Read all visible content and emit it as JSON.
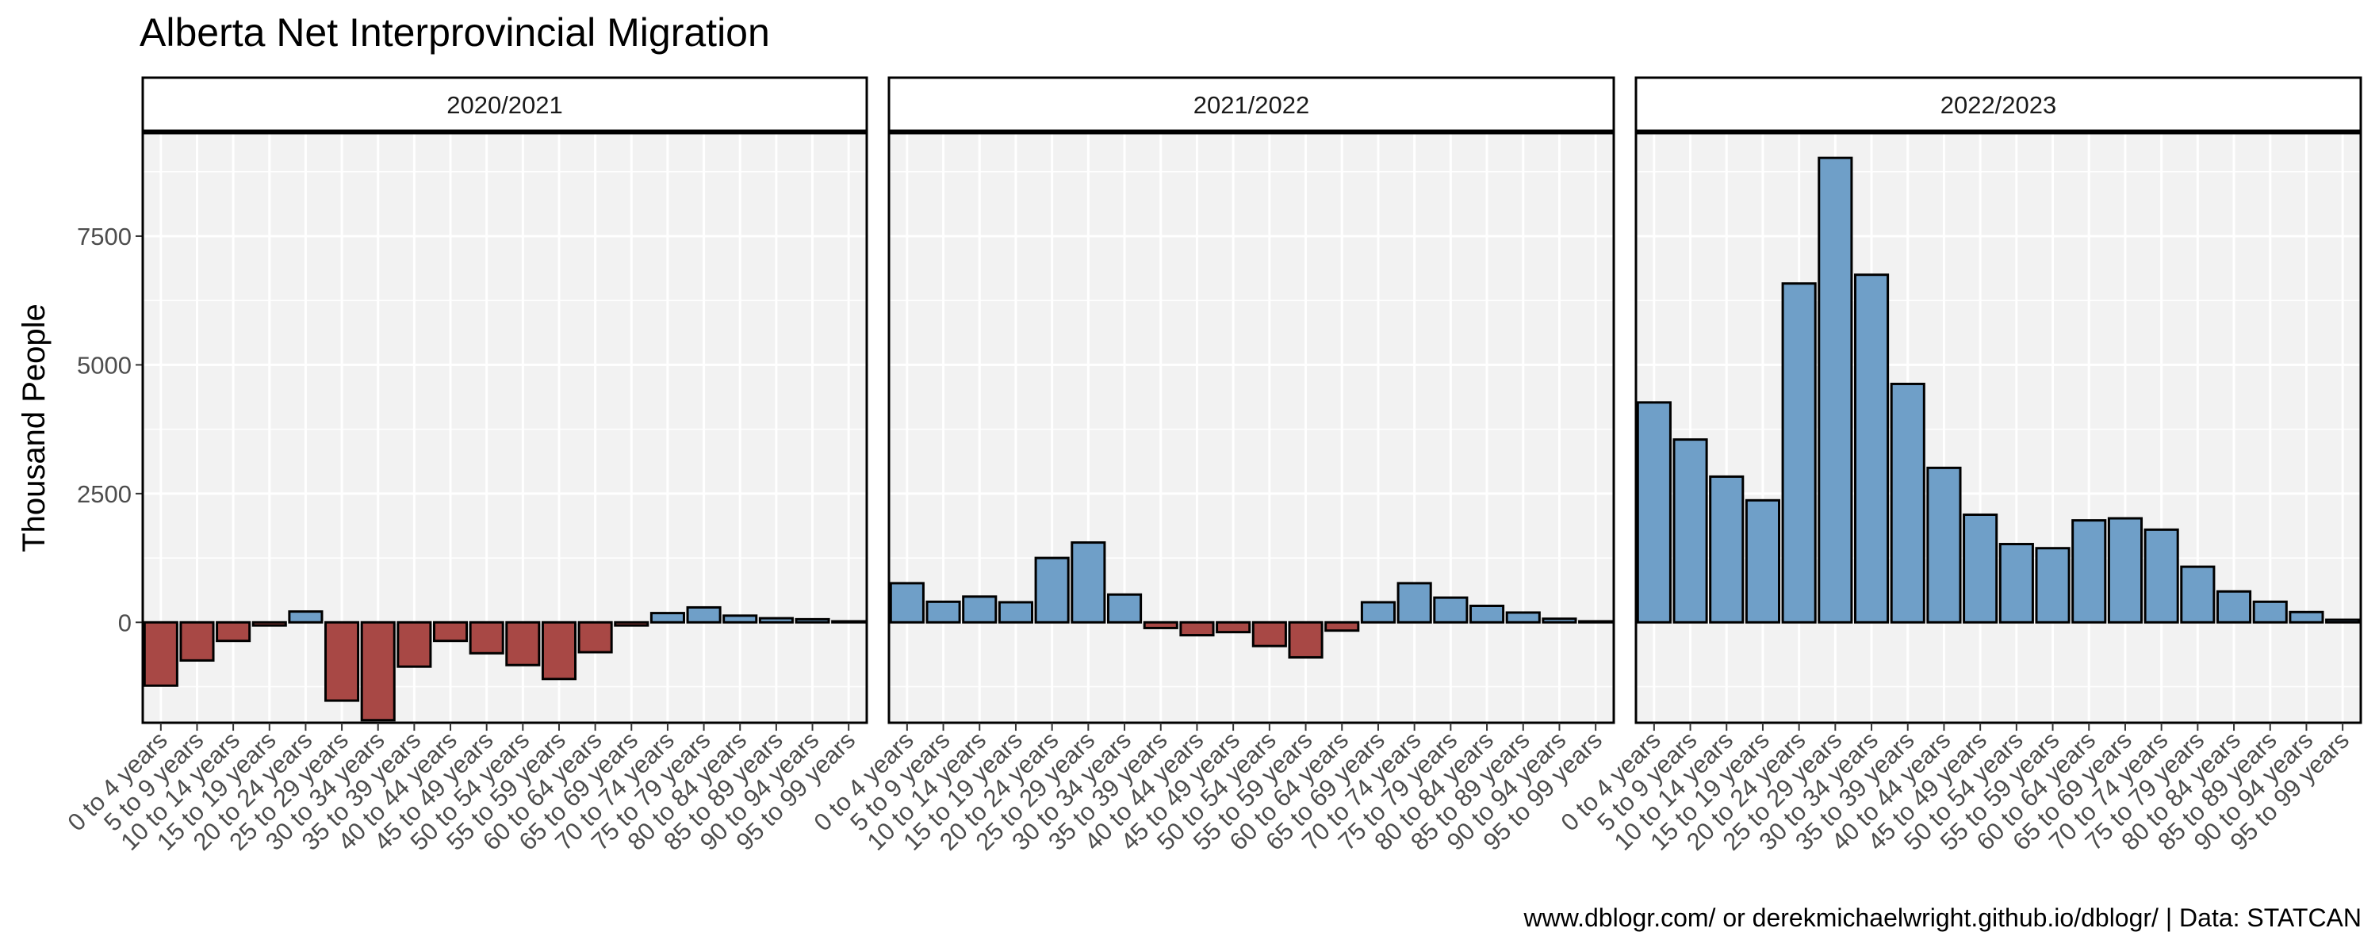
{
  "chart_data": {
    "type": "bar",
    "title": "Alberta Net Interprovincial Migration",
    "ylabel": "Thousand People",
    "xlabel": "",
    "caption": "www.dblogr.com/ or derekmichaelwright.github.io/dblogr/ | Data: STATCAN",
    "ylim": [
      -1950,
      9500
    ],
    "yticks": [
      0,
      2500,
      5000,
      7500
    ],
    "categories": [
      "0 to 4 years",
      "5 to 9 years",
      "10 to 14 years",
      "15 to 19 years",
      "20 to 24 years",
      "25 to 29 years",
      "30 to 34 years",
      "35 to 39 years",
      "40 to 44 years",
      "45 to 49 years",
      "50 to 54 years",
      "55 to 59 years",
      "60 to 64 years",
      "65 to 69 years",
      "70 to 74 years",
      "75 to 79 years",
      "80 to 84 years",
      "85 to 89 years",
      "90 to 94 years",
      "95 to 99 years"
    ],
    "series": [
      {
        "name": "2020/2021",
        "values": [
          -1230,
          -740,
          -360,
          -60,
          210,
          -1520,
          -1900,
          -860,
          -360,
          -600,
          -830,
          -1100,
          -580,
          -60,
          180,
          290,
          130,
          80,
          60,
          20
        ]
      },
      {
        "name": "2021/2022",
        "values": [
          760,
          400,
          500,
          390,
          1250,
          1550,
          540,
          -110,
          -250,
          -190,
          -460,
          -680,
          -160,
          390,
          760,
          480,
          320,
          190,
          70,
          20
        ]
      },
      {
        "name": "2022/2023",
        "values": [
          4270,
          3550,
          2830,
          2370,
          6580,
          9020,
          6750,
          4630,
          3000,
          2090,
          1520,
          1440,
          1980,
          2020,
          1800,
          1080,
          600,
          400,
          200,
          50
        ]
      }
    ],
    "colors": {
      "positive": "#6F9FC8",
      "negative": "#A84845",
      "panel_bg": "#F2F2F2",
      "grid": "#FFFFFF",
      "strip_bg": "#FFFFFF"
    }
  }
}
